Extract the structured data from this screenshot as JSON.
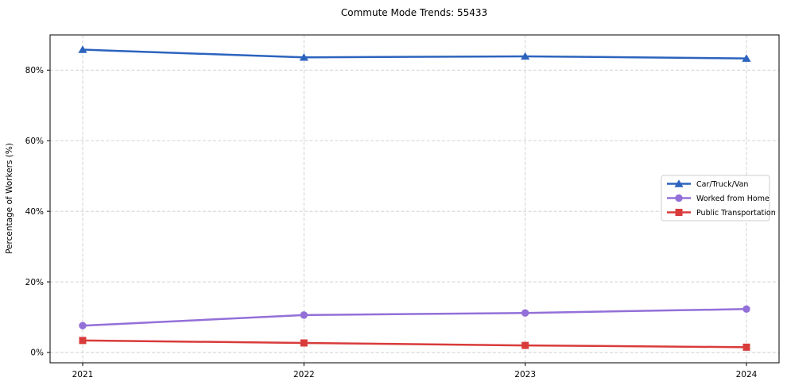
{
  "figure": {
    "title": "Commute Mode Trends: 55433"
  },
  "chart_data": {
    "type": "line",
    "title": "Commute Mode Trends: 55433",
    "xlabel": "",
    "ylabel": "Percentage of Workers (%)",
    "categories": [
      "2021",
      "2022",
      "2023",
      "2024"
    ],
    "yticks": {
      "values": [
        0,
        20,
        40,
        60,
        80
      ],
      "labels": [
        "0%",
        "20%",
        "40%",
        "60%",
        "80%"
      ]
    },
    "ylim": [
      -2.9,
      90
    ],
    "grid": true,
    "grid_style": "dashed",
    "legend": {
      "position": "center-right",
      "entries": [
        "Car/Truck/Van",
        "Worked from Home",
        "Public Transportation"
      ]
    },
    "series": [
      {
        "name": "Car/Truck/Van",
        "marker": "triangle",
        "color": "#2c63be",
        "values": [
          85.8,
          83.6,
          83.9,
          83.3
        ]
      },
      {
        "name": "Worked from Home",
        "marker": "circle",
        "color": "#9370d8",
        "values": [
          7.6,
          10.6,
          11.2,
          12.3
        ]
      },
      {
        "name": "Public Transportation",
        "marker": "square",
        "color": "#d93b3b",
        "values": [
          3.4,
          2.7,
          2.0,
          1.5
        ]
      }
    ]
  },
  "colors": {
    "grid": "#cccccc",
    "spine": "#000000",
    "tick": "#000000",
    "text": "#000000",
    "legend_border": "#cccccc",
    "legend_bg": "#ffffff",
    "background": "#ffffff"
  }
}
